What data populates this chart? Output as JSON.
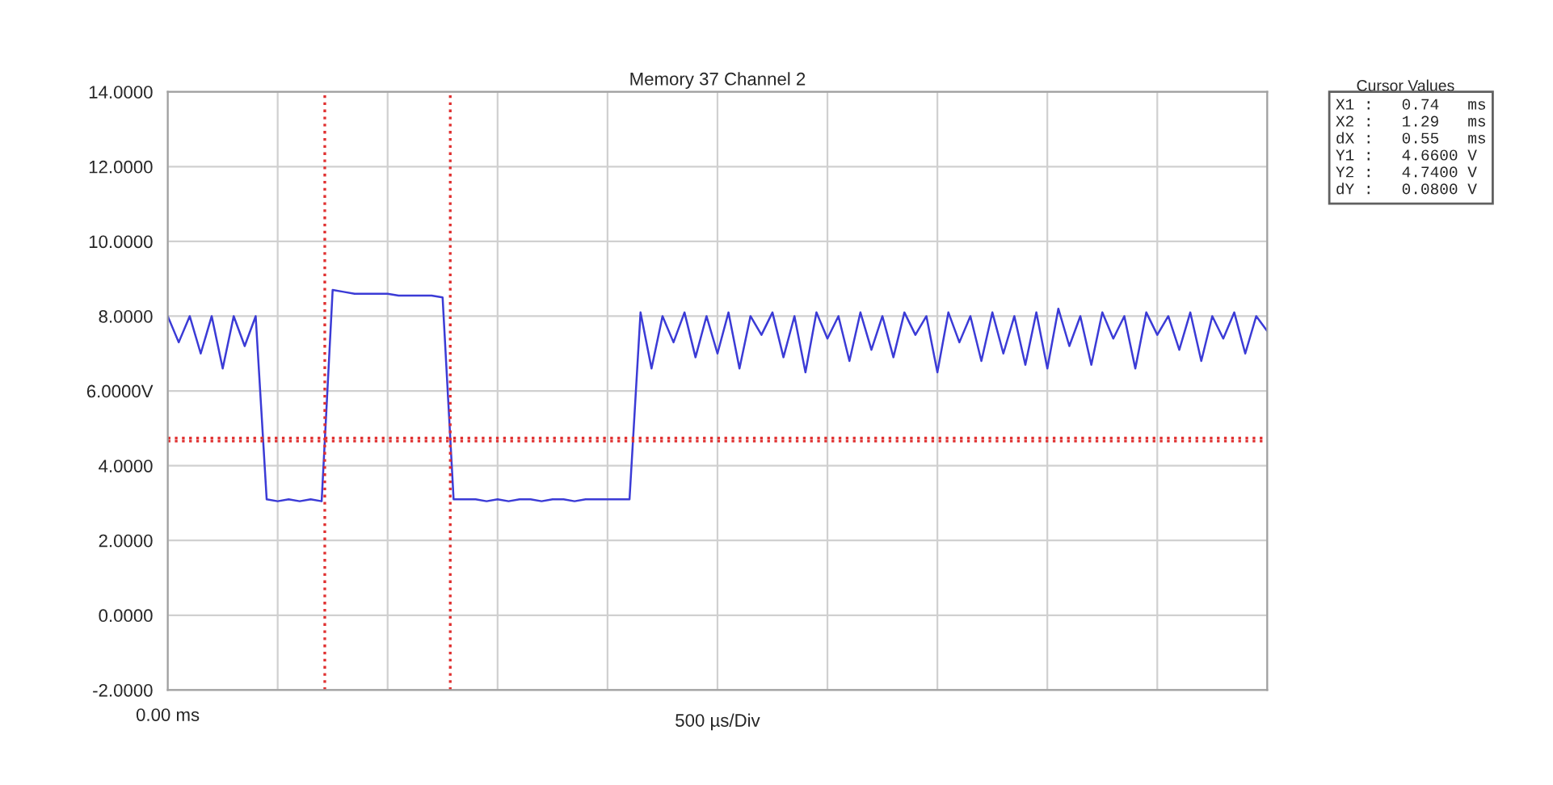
{
  "chart_data": {
    "type": "line",
    "title": "Memory 37 Channel 2",
    "xlabel": "500 µs/Div",
    "categories": [
      null,
      null,
      null,
      null,
      null,
      null,
      null,
      null,
      null,
      null,
      null,
      null,
      null,
      null,
      null,
      null,
      null,
      null,
      null,
      null,
      null,
      null,
      null,
      null,
      null,
      null,
      null,
      null,
      null,
      null,
      null,
      null,
      null,
      null,
      null,
      null,
      null,
      null,
      null,
      null,
      null,
      null,
      null,
      null,
      null,
      null,
      null,
      null,
      null,
      null,
      null,
      null,
      null,
      null,
      null,
      null,
      null,
      null,
      null,
      null,
      null,
      null,
      null,
      null,
      null,
      null,
      null,
      null,
      null,
      null,
      null,
      null,
      null,
      null,
      null,
      null,
      null,
      null,
      null,
      null,
      null,
      null,
      null,
      null,
      null,
      null,
      null,
      null,
      null,
      null,
      null,
      null,
      null,
      null,
      null,
      null,
      null,
      null,
      null,
      null,
      null
    ],
    "ylim": [
      -2,
      14
    ],
    "yticks": [
      {
        "value": -2,
        "label": "-2.0000"
      },
      {
        "value": 0,
        "label": "0.0000"
      },
      {
        "value": 2,
        "label": "2.0000"
      },
      {
        "value": 4,
        "label": "4.0000"
      },
      {
        "value": 6,
        "label": "6.0000V"
      },
      {
        "value": 8,
        "label": "8.0000"
      },
      {
        "value": 10,
        "label": "10.0000"
      },
      {
        "value": 12,
        "label": "12.0000"
      },
      {
        "value": 14,
        "label": "14.0000"
      }
    ],
    "grid": true,
    "marker": "none",
    "line_style": "solid",
    "series": [
      {
        "color": "#3b3bd6",
        "values": [
          8.0,
          7.3,
          8.0,
          7.0,
          8.0,
          6.6,
          8.0,
          7.2,
          8.0,
          3.1,
          3.05,
          3.1,
          3.05,
          3.1,
          3.05,
          8.7,
          8.65,
          8.6,
          8.6,
          8.6,
          8.6,
          8.55,
          8.55,
          8.55,
          8.55,
          8.5,
          3.1,
          3.1,
          3.1,
          3.05,
          3.1,
          3.05,
          3.1,
          3.1,
          3.05,
          3.1,
          3.1,
          3.05,
          3.1,
          3.1,
          3.1,
          3.1,
          3.1,
          8.1,
          6.6,
          8.0,
          7.3,
          8.1,
          6.9,
          8.0,
          7.0,
          8.1,
          6.6,
          8.0,
          7.5,
          8.1,
          6.9,
          8.0,
          6.5,
          8.1,
          7.4,
          8.0,
          6.8,
          8.1,
          7.1,
          8.0,
          6.9,
          8.1,
          7.5,
          8.0,
          6.5,
          8.1,
          7.3,
          8.0,
          6.8,
          8.1,
          7.0,
          8.0,
          6.7,
          8.1,
          6.6,
          8.2,
          7.2,
          8.0,
          6.7,
          8.1,
          7.4,
          8.0,
          6.6,
          8.1,
          7.5,
          8.0,
          7.1,
          8.1,
          6.8,
          8.0,
          7.4,
          8.1,
          7.0,
          8.0,
          7.6
        ]
      }
    ],
    "ref_lines": [
      {
        "axis": "y",
        "value": 4.66,
        "color": "#e03030",
        "line_style": "dotted"
      },
      {
        "axis": "y",
        "value": 4.74,
        "color": "#e03030",
        "line_style": "dotted"
      }
    ],
    "annotations": [
      "0.00 ms",
      "Cursor Values",
      "X1 :   0.74   ms",
      "X2 :   1.29   ms",
      "dX :   0.55   ms",
      "Y1 :   4.6600 V",
      "Y2 :   4.7400 V",
      "dY :   0.0800 V"
    ]
  }
}
